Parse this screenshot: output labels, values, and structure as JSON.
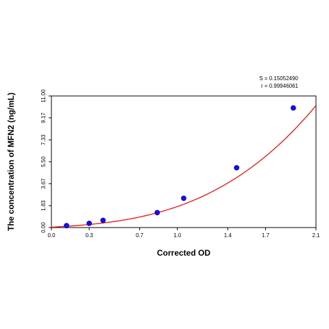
{
  "chart_data": {
    "type": "scatter",
    "xlabel": "Corrected OD",
    "ylabel": "The concentration of MFN2 (ng/mL)",
    "xlim": [
      0.0,
      2.1
    ],
    "ylim": [
      0.0,
      11.0
    ],
    "x_ticks": [
      "0.0",
      "0.3",
      "0.7",
      "1.0",
      "1.4",
      "1.7",
      "2.1"
    ],
    "y_ticks": [
      "0.00",
      "1.83",
      "3.67",
      "5.50",
      "7.33",
      "9.17",
      "11.00"
    ],
    "grid": false,
    "stats": {
      "s_label": "S = 0.15052490",
      "r_label": "r = 0.99946061"
    },
    "series": [
      {
        "type": "scatter",
        "color": "#1010ee",
        "points": [
          {
            "x": 0.12,
            "y": 0.16
          },
          {
            "x": 0.3,
            "y": 0.35
          },
          {
            "x": 0.41,
            "y": 0.6
          },
          {
            "x": 0.84,
            "y": 1.25
          },
          {
            "x": 1.05,
            "y": 2.45
          },
          {
            "x": 1.47,
            "y": 5.0
          },
          {
            "x": 1.92,
            "y": 10.0
          }
        ]
      },
      {
        "type": "fit_line",
        "color": "#ee1010",
        "x_range": [
          0.0,
          2.1
        ],
        "coeffs": [
          0.03,
          0.58,
          0.35,
          0.8
        ]
      }
    ]
  }
}
